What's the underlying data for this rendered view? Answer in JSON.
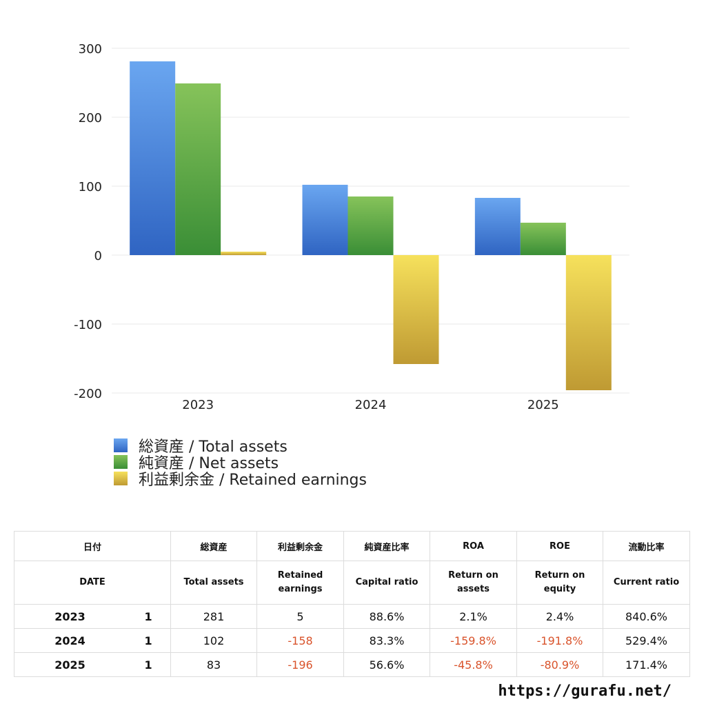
{
  "chart_data": {
    "type": "bar",
    "categories": [
      "2023",
      "2024",
      "2025"
    ],
    "series": [
      {
        "name": "総資産 / Total assets",
        "values": [
          281,
          102,
          83
        ],
        "color_top": "#6aa6f0",
        "color_bottom": "#2f64c2"
      },
      {
        "name": "純資産 / Net assets",
        "values": [
          249,
          85,
          47
        ],
        "color_top": "#86c35a",
        "color_bottom": "#3a8e36"
      },
      {
        "name": "利益剰余金 / Retained earnings",
        "values": [
          5,
          -158,
          -196
        ],
        "color_top": "#f6e15c",
        "color_bottom": "#bf9a33"
      }
    ],
    "yticks": [
      "300",
      "200",
      "100",
      "0",
      "-100",
      "-200"
    ],
    "ylim": [
      -200,
      300
    ],
    "grid": true,
    "legend_placement": "bottom-left"
  },
  "table": {
    "header_jp": {
      "date": "日付",
      "total_assets": "総資産",
      "retained": "利益剰余金",
      "capital_ratio": "純資産比率",
      "roa": "ROA",
      "roe": "ROE",
      "current_ratio": "流動比率"
    },
    "header_en": {
      "date": "DATE",
      "total_assets": "Total assets",
      "retained_1": "Retained",
      "retained_2": "earnings",
      "capital_ratio": "Capital ratio",
      "roa_1": "Return on",
      "roa_2": "assets",
      "roe_1": "Return on",
      "roe_2": "equity",
      "current_ratio": "Current ratio"
    },
    "rows": [
      {
        "year": "2023",
        "count": "1",
        "total_assets": "281",
        "retained": "5",
        "capital_ratio": "88.6%",
        "roa": "2.1%",
        "roe": "2.4%",
        "current_ratio": "840.6%"
      },
      {
        "year": "2024",
        "count": "1",
        "total_assets": "102",
        "retained": "-158",
        "capital_ratio": "83.3%",
        "roa": "-159.8%",
        "roe": "-191.8%",
        "current_ratio": "529.4%"
      },
      {
        "year": "2025",
        "count": "1",
        "total_assets": "83",
        "retained": "-196",
        "capital_ratio": "56.6%",
        "roa": "-45.8%",
        "roe": "-80.9%",
        "current_ratio": "171.4%"
      }
    ]
  },
  "source": "https://gurafu.net/"
}
